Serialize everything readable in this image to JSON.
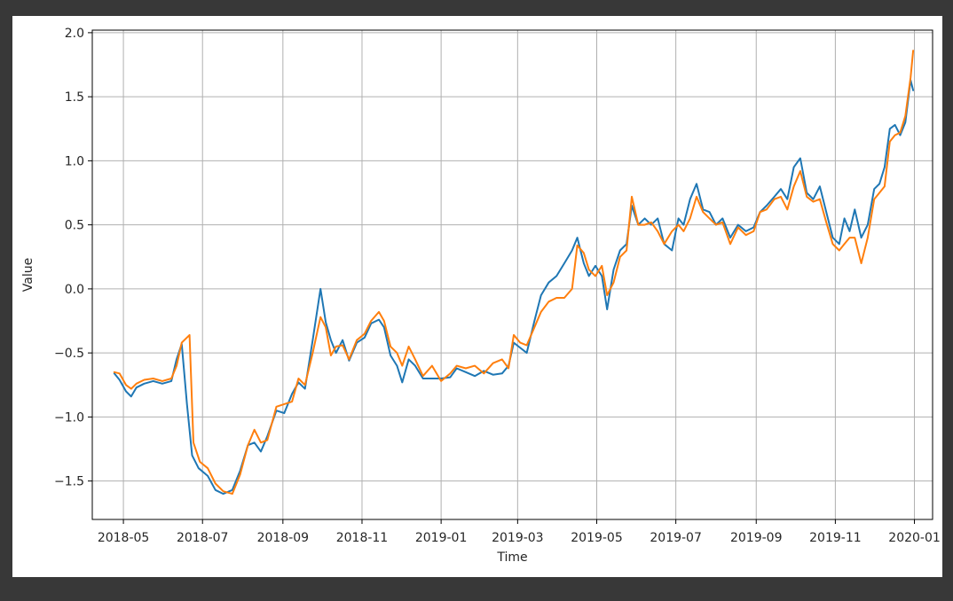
{
  "chart_data": {
    "type": "line",
    "title": "",
    "xlabel": "Time",
    "ylabel": "Value",
    "xlim": [
      "2018-04-07",
      "2020-01-15"
    ],
    "ylim": [
      -1.8,
      2.02
    ],
    "grid": true,
    "x_tick_labels": [
      "2018-05",
      "2018-07",
      "2018-09",
      "2018-11",
      "2019-01",
      "2019-03",
      "2019-05",
      "2019-07",
      "2019-09",
      "2019-11",
      "2020-01"
    ],
    "x_tick_dates": [
      "2018-05-01",
      "2018-07-01",
      "2018-09-01",
      "2018-11-01",
      "2019-01-01",
      "2019-03-01",
      "2019-05-01",
      "2019-07-01",
      "2019-09-01",
      "2019-11-01",
      "2020-01-01"
    ],
    "y_tick_values": [
      -1.5,
      -1.0,
      -0.5,
      0.0,
      0.5,
      1.0,
      1.5,
      2.0
    ],
    "y_tick_labels": [
      "−1.5",
      "−1.0",
      "−0.5",
      "0.0",
      "0.5",
      "1.0",
      "1.5",
      "2.0"
    ],
    "series": [
      {
        "color": "#1f77b4",
        "points": [
          [
            "2018-04-24",
            -0.66
          ],
          [
            "2018-04-28",
            -0.71
          ],
          [
            "2018-05-03",
            -0.8
          ],
          [
            "2018-05-07",
            -0.84
          ],
          [
            "2018-05-11",
            -0.77
          ],
          [
            "2018-05-17",
            -0.74
          ],
          [
            "2018-05-24",
            -0.72
          ],
          [
            "2018-05-31",
            -0.74
          ],
          [
            "2018-06-07",
            -0.72
          ],
          [
            "2018-06-11",
            -0.55
          ],
          [
            "2018-06-15",
            -0.43
          ],
          [
            "2018-06-19",
            -0.9
          ],
          [
            "2018-06-23",
            -1.3
          ],
          [
            "2018-06-28",
            -1.4
          ],
          [
            "2018-07-05",
            -1.46
          ],
          [
            "2018-07-11",
            -1.57
          ],
          [
            "2018-07-17",
            -1.6
          ],
          [
            "2018-07-24",
            -1.57
          ],
          [
            "2018-07-30",
            -1.42
          ],
          [
            "2018-08-05",
            -1.22
          ],
          [
            "2018-08-10",
            -1.2
          ],
          [
            "2018-08-15",
            -1.27
          ],
          [
            "2018-08-20",
            -1.15
          ],
          [
            "2018-08-27",
            -0.95
          ],
          [
            "2018-09-02",
            -0.97
          ],
          [
            "2018-09-08",
            -0.82
          ],
          [
            "2018-09-13",
            -0.73
          ],
          [
            "2018-09-18",
            -0.78
          ],
          [
            "2018-09-24",
            -0.4
          ],
          [
            "2018-09-30",
            0.0
          ],
          [
            "2018-10-04",
            -0.26
          ],
          [
            "2018-10-08",
            -0.4
          ],
          [
            "2018-10-12",
            -0.5
          ],
          [
            "2018-10-17",
            -0.4
          ],
          [
            "2018-10-22",
            -0.56
          ],
          [
            "2018-10-28",
            -0.42
          ],
          [
            "2018-11-03",
            -0.38
          ],
          [
            "2018-11-08",
            -0.27
          ],
          [
            "2018-11-14",
            -0.24
          ],
          [
            "2018-11-18",
            -0.3
          ],
          [
            "2018-11-23",
            -0.52
          ],
          [
            "2018-11-28",
            -0.6
          ],
          [
            "2018-12-02",
            -0.73
          ],
          [
            "2018-12-07",
            -0.55
          ],
          [
            "2018-12-12",
            -0.6
          ],
          [
            "2018-12-18",
            -0.7
          ],
          [
            "2018-12-25",
            -0.7
          ],
          [
            "2019-01-01",
            -0.7
          ],
          [
            "2019-01-08",
            -0.69
          ],
          [
            "2019-01-13",
            -0.62
          ],
          [
            "2019-01-20",
            -0.65
          ],
          [
            "2019-01-27",
            -0.68
          ],
          [
            "2019-02-03",
            -0.64
          ],
          [
            "2019-02-10",
            -0.67
          ],
          [
            "2019-02-17",
            -0.66
          ],
          [
            "2019-02-22",
            -0.6
          ],
          [
            "2019-02-26",
            -0.42
          ],
          [
            "2019-03-03",
            -0.46
          ],
          [
            "2019-03-08",
            -0.5
          ],
          [
            "2019-03-14",
            -0.25
          ],
          [
            "2019-03-19",
            -0.05
          ],
          [
            "2019-03-25",
            0.05
          ],
          [
            "2019-03-31",
            0.1
          ],
          [
            "2019-04-06",
            0.2
          ],
          [
            "2019-04-12",
            0.3
          ],
          [
            "2019-04-16",
            0.4
          ],
          [
            "2019-04-21",
            0.2
          ],
          [
            "2019-04-25",
            0.1
          ],
          [
            "2019-04-30",
            0.18
          ],
          [
            "2019-05-05",
            0.1
          ],
          [
            "2019-05-09",
            -0.16
          ],
          [
            "2019-05-14",
            0.15
          ],
          [
            "2019-05-19",
            0.3
          ],
          [
            "2019-05-24",
            0.35
          ],
          [
            "2019-05-28",
            0.65
          ],
          [
            "2019-06-02",
            0.5
          ],
          [
            "2019-06-07",
            0.55
          ],
          [
            "2019-06-12",
            0.5
          ],
          [
            "2019-06-17",
            0.55
          ],
          [
            "2019-06-22",
            0.35
          ],
          [
            "2019-06-28",
            0.3
          ],
          [
            "2019-07-03",
            0.55
          ],
          [
            "2019-07-07",
            0.5
          ],
          [
            "2019-07-12",
            0.7
          ],
          [
            "2019-07-17",
            0.82
          ],
          [
            "2019-07-22",
            0.62
          ],
          [
            "2019-07-27",
            0.6
          ],
          [
            "2019-08-01",
            0.5
          ],
          [
            "2019-08-06",
            0.55
          ],
          [
            "2019-08-12",
            0.4
          ],
          [
            "2019-08-18",
            0.5
          ],
          [
            "2019-08-24",
            0.45
          ],
          [
            "2019-08-30",
            0.48
          ],
          [
            "2019-09-04",
            0.6
          ],
          [
            "2019-09-09",
            0.65
          ],
          [
            "2019-09-15",
            0.72
          ],
          [
            "2019-09-20",
            0.78
          ],
          [
            "2019-09-25",
            0.7
          ],
          [
            "2019-09-30",
            0.95
          ],
          [
            "2019-10-05",
            1.02
          ],
          [
            "2019-10-10",
            0.75
          ],
          [
            "2019-10-15",
            0.7
          ],
          [
            "2019-10-20",
            0.8
          ],
          [
            "2019-10-25",
            0.6
          ],
          [
            "2019-10-30",
            0.4
          ],
          [
            "2019-11-04",
            0.35
          ],
          [
            "2019-11-08",
            0.55
          ],
          [
            "2019-11-12",
            0.45
          ],
          [
            "2019-11-16",
            0.62
          ],
          [
            "2019-11-21",
            0.4
          ],
          [
            "2019-11-26",
            0.5
          ],
          [
            "2019-12-01",
            0.78
          ],
          [
            "2019-12-05",
            0.82
          ],
          [
            "2019-12-09",
            0.95
          ],
          [
            "2019-12-13",
            1.25
          ],
          [
            "2019-12-17",
            1.28
          ],
          [
            "2019-12-21",
            1.2
          ],
          [
            "2019-12-25",
            1.3
          ],
          [
            "2019-12-29",
            1.63
          ],
          [
            "2019-12-31",
            1.55
          ]
        ]
      },
      {
        "color": "#ff7f0e",
        "points": [
          [
            "2018-04-24",
            -0.65
          ],
          [
            "2018-04-28",
            -0.66
          ],
          [
            "2018-05-03",
            -0.75
          ],
          [
            "2018-05-07",
            -0.78
          ],
          [
            "2018-05-11",
            -0.74
          ],
          [
            "2018-05-17",
            -0.71
          ],
          [
            "2018-05-24",
            -0.7
          ],
          [
            "2018-05-31",
            -0.72
          ],
          [
            "2018-06-07",
            -0.7
          ],
          [
            "2018-06-11",
            -0.6
          ],
          [
            "2018-06-15",
            -0.42
          ],
          [
            "2018-06-21",
            -0.36
          ],
          [
            "2018-06-24",
            -1.2
          ],
          [
            "2018-06-29",
            -1.35
          ],
          [
            "2018-07-05",
            -1.4
          ],
          [
            "2018-07-11",
            -1.52
          ],
          [
            "2018-07-17",
            -1.58
          ],
          [
            "2018-07-24",
            -1.6
          ],
          [
            "2018-07-30",
            -1.45
          ],
          [
            "2018-08-05",
            -1.22
          ],
          [
            "2018-08-10",
            -1.1
          ],
          [
            "2018-08-15",
            -1.2
          ],
          [
            "2018-08-20",
            -1.18
          ],
          [
            "2018-08-27",
            -0.92
          ],
          [
            "2018-09-02",
            -0.9
          ],
          [
            "2018-09-08",
            -0.88
          ],
          [
            "2018-09-13",
            -0.7
          ],
          [
            "2018-09-18",
            -0.75
          ],
          [
            "2018-09-24",
            -0.5
          ],
          [
            "2018-09-30",
            -0.22
          ],
          [
            "2018-10-04",
            -0.3
          ],
          [
            "2018-10-08",
            -0.52
          ],
          [
            "2018-10-12",
            -0.45
          ],
          [
            "2018-10-17",
            -0.44
          ],
          [
            "2018-10-22",
            -0.55
          ],
          [
            "2018-10-28",
            -0.4
          ],
          [
            "2018-11-03",
            -0.35
          ],
          [
            "2018-11-08",
            -0.25
          ],
          [
            "2018-11-14",
            -0.18
          ],
          [
            "2018-11-18",
            -0.25
          ],
          [
            "2018-11-23",
            -0.45
          ],
          [
            "2018-11-28",
            -0.5
          ],
          [
            "2018-12-02",
            -0.6
          ],
          [
            "2018-12-07",
            -0.45
          ],
          [
            "2018-12-12",
            -0.55
          ],
          [
            "2018-12-18",
            -0.68
          ],
          [
            "2018-12-25",
            -0.6
          ],
          [
            "2019-01-01",
            -0.72
          ],
          [
            "2019-01-08",
            -0.66
          ],
          [
            "2019-01-13",
            -0.6
          ],
          [
            "2019-01-20",
            -0.62
          ],
          [
            "2019-01-27",
            -0.6
          ],
          [
            "2019-02-03",
            -0.66
          ],
          [
            "2019-02-10",
            -0.58
          ],
          [
            "2019-02-17",
            -0.55
          ],
          [
            "2019-02-22",
            -0.62
          ],
          [
            "2019-02-26",
            -0.36
          ],
          [
            "2019-03-03",
            -0.42
          ],
          [
            "2019-03-08",
            -0.44
          ],
          [
            "2019-03-14",
            -0.3
          ],
          [
            "2019-03-19",
            -0.18
          ],
          [
            "2019-03-25",
            -0.1
          ],
          [
            "2019-03-31",
            -0.07
          ],
          [
            "2019-04-06",
            -0.07
          ],
          [
            "2019-04-12",
            0.0
          ],
          [
            "2019-04-16",
            0.34
          ],
          [
            "2019-04-21",
            0.28
          ],
          [
            "2019-04-25",
            0.15
          ],
          [
            "2019-04-30",
            0.1
          ],
          [
            "2019-05-05",
            0.18
          ],
          [
            "2019-05-09",
            -0.05
          ],
          [
            "2019-05-14",
            0.05
          ],
          [
            "2019-05-19",
            0.25
          ],
          [
            "2019-05-24",
            0.3
          ],
          [
            "2019-05-28",
            0.72
          ],
          [
            "2019-06-02",
            0.5
          ],
          [
            "2019-06-07",
            0.5
          ],
          [
            "2019-06-12",
            0.52
          ],
          [
            "2019-06-17",
            0.45
          ],
          [
            "2019-06-22",
            0.35
          ],
          [
            "2019-06-28",
            0.45
          ],
          [
            "2019-07-03",
            0.5
          ],
          [
            "2019-07-07",
            0.45
          ],
          [
            "2019-07-12",
            0.55
          ],
          [
            "2019-07-17",
            0.72
          ],
          [
            "2019-07-22",
            0.6
          ],
          [
            "2019-07-27",
            0.55
          ],
          [
            "2019-08-01",
            0.5
          ],
          [
            "2019-08-06",
            0.52
          ],
          [
            "2019-08-12",
            0.35
          ],
          [
            "2019-08-18",
            0.48
          ],
          [
            "2019-08-24",
            0.42
          ],
          [
            "2019-08-30",
            0.45
          ],
          [
            "2019-09-04",
            0.6
          ],
          [
            "2019-09-09",
            0.62
          ],
          [
            "2019-09-15",
            0.7
          ],
          [
            "2019-09-20",
            0.72
          ],
          [
            "2019-09-25",
            0.62
          ],
          [
            "2019-09-30",
            0.8
          ],
          [
            "2019-10-05",
            0.92
          ],
          [
            "2019-10-10",
            0.72
          ],
          [
            "2019-10-15",
            0.68
          ],
          [
            "2019-10-20",
            0.7
          ],
          [
            "2019-10-25",
            0.52
          ],
          [
            "2019-10-30",
            0.35
          ],
          [
            "2019-11-04",
            0.3
          ],
          [
            "2019-11-08",
            0.35
          ],
          [
            "2019-11-12",
            0.4
          ],
          [
            "2019-11-16",
            0.4
          ],
          [
            "2019-11-21",
            0.2
          ],
          [
            "2019-11-26",
            0.4
          ],
          [
            "2019-12-01",
            0.7
          ],
          [
            "2019-12-05",
            0.75
          ],
          [
            "2019-12-09",
            0.8
          ],
          [
            "2019-12-13",
            1.15
          ],
          [
            "2019-12-17",
            1.2
          ],
          [
            "2019-12-21",
            1.22
          ],
          [
            "2019-12-25",
            1.35
          ],
          [
            "2019-12-29",
            1.65
          ],
          [
            "2019-12-31",
            1.86
          ]
        ]
      }
    ]
  }
}
